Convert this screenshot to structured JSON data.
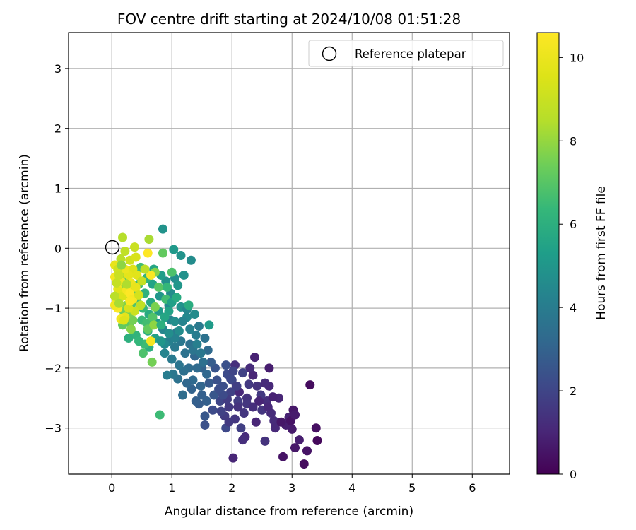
{
  "chart_data": {
    "type": "scatter",
    "title": "FOV centre drift starting at 2024/10/08 01:51:28",
    "xlabel": "Angular distance from reference (arcmin)",
    "ylabel": "Rotation from reference (arcmin)",
    "xlim": [
      -0.72,
      6.62
    ],
    "ylim": [
      -3.77,
      3.6
    ],
    "x_ticks": [
      0,
      1,
      2,
      3,
      4,
      5,
      6
    ],
    "y_ticks": [
      -3,
      -2,
      -1,
      0,
      1,
      2,
      3
    ],
    "x_tick_labels": [
      "0",
      "1",
      "2",
      "3",
      "4",
      "5",
      "6"
    ],
    "y_tick_labels": [
      "−3",
      "−2",
      "−1",
      "0",
      "1",
      "2",
      "3"
    ],
    "grid": true,
    "legend": {
      "position": "top-right",
      "entries": [
        {
          "label": "Reference platepar",
          "marker": "open-circle"
        }
      ]
    },
    "reference_point": {
      "x": 0,
      "y": 0
    },
    "colorbar": {
      "label": "Hours from first FF file",
      "colormap": "viridis",
      "range": [
        0,
        10.6
      ],
      "ticks": [
        0,
        2,
        4,
        6,
        8,
        10
      ],
      "tick_labels": [
        "0",
        "2",
        "4",
        "6",
        "8",
        "10"
      ]
    },
    "points": [
      [
        3.3,
        -2.28,
        0.3
      ],
      [
        3.4,
        -3.0,
        0.4
      ],
      [
        3.42,
        -3.21,
        0.2
      ],
      [
        3.25,
        -3.38,
        0.5
      ],
      [
        3.2,
        -3.6,
        0.3
      ],
      [
        3.05,
        -3.33,
        0.6
      ],
      [
        3.12,
        -3.2,
        0.8
      ],
      [
        3.0,
        -3.02,
        0.7
      ],
      [
        2.95,
        -2.82,
        0.9
      ],
      [
        3.02,
        -2.7,
        0.6
      ],
      [
        2.9,
        -2.95,
        0.8
      ],
      [
        2.85,
        -3.48,
        0.5
      ],
      [
        2.78,
        -2.5,
        1.0
      ],
      [
        2.7,
        -2.88,
        1.2
      ],
      [
        2.72,
        -3.0,
        1.1
      ],
      [
        2.62,
        -2.0,
        0.8
      ],
      [
        2.62,
        -2.3,
        1.1
      ],
      [
        2.58,
        -2.55,
        1.3
      ],
      [
        2.65,
        -2.75,
        1.2
      ],
      [
        2.55,
        -3.22,
        1.4
      ],
      [
        2.5,
        -2.7,
        1.5
      ],
      [
        2.38,
        -1.82,
        0.9
      ],
      [
        2.35,
        -2.12,
        1.0
      ],
      [
        2.28,
        -2.27,
        1.6
      ],
      [
        2.25,
        -2.5,
        1.4
      ],
      [
        2.2,
        -2.75,
        1.5
      ],
      [
        2.22,
        -3.15,
        1.2
      ],
      [
        2.15,
        -3.0,
        1.8
      ],
      [
        2.1,
        -2.55,
        1.7
      ],
      [
        2.05,
        -2.85,
        1.5
      ],
      [
        2.0,
        -2.2,
        2.0
      ],
      [
        1.98,
        -2.4,
        1.9
      ],
      [
        1.95,
        -2.65,
        1.6
      ],
      [
        1.9,
        -3.0,
        2.1
      ],
      [
        1.88,
        -2.8,
        1.7
      ],
      [
        2.05,
        -1.95,
        1.3
      ],
      [
        2.02,
        -3.5,
        1.0
      ],
      [
        1.92,
        -2.1,
        2.2
      ],
      [
        1.85,
        -2.3,
        2.3
      ],
      [
        1.8,
        -2.55,
        2.0
      ],
      [
        1.82,
        -2.72,
        1.9
      ],
      [
        2.12,
        -2.4,
        1.1
      ],
      [
        2.3,
        -2.0,
        1.2
      ],
      [
        2.48,
        -2.45,
        1.6
      ],
      [
        2.4,
        -2.9,
        1.0
      ],
      [
        2.18,
        -3.2,
        1.3
      ],
      [
        1.75,
        -2.2,
        2.4
      ],
      [
        1.7,
        -2.45,
        2.6
      ],
      [
        1.72,
        -2.0,
        2.5
      ],
      [
        1.68,
        -2.7,
        2.2
      ],
      [
        1.65,
        -1.9,
        2.8
      ],
      [
        1.62,
        -2.25,
        2.7
      ],
      [
        1.58,
        -2.55,
        2.9
      ],
      [
        1.55,
        -2.8,
        2.6
      ],
      [
        1.55,
        -2.95,
        2.4
      ],
      [
        1.5,
        -2.0,
        3.0
      ],
      [
        1.48,
        -2.3,
        3.1
      ],
      [
        1.45,
        -2.6,
        2.8
      ],
      [
        1.4,
        -2.55,
        2.9
      ],
      [
        1.38,
        -1.8,
        3.2
      ],
      [
        1.35,
        -2.2,
        3.3
      ],
      [
        1.33,
        -2.35,
        3.0
      ],
      [
        1.3,
        -1.6,
        3.5
      ],
      [
        1.28,
        -2.0,
        3.4
      ],
      [
        1.25,
        -2.25,
        3.2
      ],
      [
        1.22,
        -1.75,
        3.6
      ],
      [
        1.2,
        -2.05,
        3.5
      ],
      [
        1.18,
        -2.45,
        3.4
      ],
      [
        1.15,
        -1.55,
        3.8
      ],
      [
        1.12,
        -1.95,
        3.7
      ],
      [
        1.1,
        -2.18,
        3.6
      ],
      [
        1.08,
        -1.4,
        4.0
      ],
      [
        1.05,
        -1.65,
        3.9
      ],
      [
        1.02,
        -2.1,
        3.8
      ],
      [
        1.0,
        -1.85,
        3.9
      ],
      [
        0.98,
        -1.2,
        4.2
      ],
      [
        0.95,
        -1.55,
        4.1
      ],
      [
        0.92,
        -2.12,
        4.0
      ],
      [
        0.88,
        -1.75,
        4.3
      ],
      [
        0.85,
        -1.35,
        4.4
      ],
      [
        1.45,
        -1.3,
        3.9
      ],
      [
        1.55,
        -1.5,
        3.6
      ],
      [
        1.6,
        -1.7,
        3.3
      ],
      [
        1.62,
        -1.28,
        5.2
      ],
      [
        1.4,
        -1.45,
        4.0
      ],
      [
        1.35,
        -1.7,
        3.7
      ],
      [
        1.3,
        -1.35,
        4.2
      ],
      [
        1.25,
        -1.15,
        4.5
      ],
      [
        1.2,
        -0.45,
        4.8
      ],
      [
        1.15,
        -0.12,
        4.9
      ],
      [
        1.03,
        -0.02,
        5.1
      ],
      [
        1.05,
        -0.5,
        4.7
      ],
      [
        0.98,
        -0.75,
        4.6
      ],
      [
        0.95,
        -0.95,
        4.5
      ],
      [
        0.9,
        -0.55,
        4.8
      ],
      [
        1.32,
        -0.2,
        4.6
      ],
      [
        0.85,
        0.32,
        4.9
      ],
      [
        0.82,
        -0.45,
        5.3
      ],
      [
        0.8,
        -0.8,
        5.0
      ],
      [
        0.78,
        -1.05,
        5.2
      ],
      [
        0.75,
        -1.25,
        5.1
      ],
      [
        0.72,
        -1.5,
        5.4
      ],
      [
        0.7,
        -0.35,
        5.6
      ],
      [
        0.68,
        -0.6,
        5.5
      ],
      [
        0.65,
        -0.9,
        5.7
      ],
      [
        0.62,
        -1.1,
        5.8
      ],
      [
        0.6,
        -1.38,
        5.9
      ],
      [
        0.62,
        -1.65,
        6.0
      ],
      [
        0.58,
        -0.5,
        6.2
      ],
      [
        0.55,
        -0.75,
        6.1
      ],
      [
        0.52,
        -1.0,
        6.3
      ],
      [
        0.5,
        -1.2,
        6.4
      ],
      [
        0.48,
        -0.32,
        6.6
      ],
      [
        0.45,
        -0.6,
        6.5
      ],
      [
        0.42,
        -0.88,
        6.7
      ],
      [
        0.4,
        -1.45,
        6.2
      ],
      [
        0.38,
        -0.4,
        6.8
      ],
      [
        0.35,
        -0.7,
        7.0
      ],
      [
        0.32,
        -0.95,
        6.9
      ],
      [
        0.3,
        -1.25,
        7.1
      ],
      [
        0.28,
        -1.5,
        6.0
      ],
      [
        0.25,
        -0.52,
        7.2
      ],
      [
        0.22,
        -0.78,
        7.3
      ],
      [
        0.2,
        -1.05,
        7.4
      ],
      [
        0.18,
        -1.28,
        7.2
      ],
      [
        0.52,
        -1.75,
        6.8
      ],
      [
        0.55,
        -1.6,
        6.5
      ],
      [
        0.58,
        -1.25,
        6.6
      ],
      [
        0.6,
        -1.35,
        7.2
      ],
      [
        0.67,
        -1.9,
        7.5
      ],
      [
        0.8,
        -2.78,
        6.5
      ],
      [
        0.62,
        0.15,
        8.3
      ],
      [
        0.72,
        -0.4,
        7.8
      ],
      [
        0.85,
        -0.08,
        7.2
      ],
      [
        0.78,
        -0.65,
        7.0
      ],
      [
        0.9,
        -0.85,
        6.6
      ],
      [
        0.68,
        -1.15,
        6.9
      ],
      [
        0.72,
        -0.98,
        7.6
      ],
      [
        0.7,
        -1.28,
        7.9
      ],
      [
        0.45,
        -1.55,
        6.3
      ],
      [
        0.35,
        -1.2,
        7.5
      ],
      [
        0.32,
        -1.35,
        7.8
      ],
      [
        0.28,
        -1.1,
        7.6
      ],
      [
        0.25,
        -0.95,
        7.7
      ],
      [
        0.2,
        -0.62,
        8.0
      ],
      [
        0.18,
        -0.4,
        8.2
      ],
      [
        0.15,
        -0.18,
        8.6
      ],
      [
        0.18,
        0.18,
        8.5
      ],
      [
        0.22,
        -0.05,
        8.8
      ],
      [
        0.3,
        -0.2,
        9.2
      ],
      [
        0.38,
        0.02,
        9.0
      ],
      [
        0.4,
        -0.15,
        9.4
      ],
      [
        0.35,
        -0.35,
        9.6
      ],
      [
        0.28,
        -0.45,
        9.8
      ],
      [
        0.22,
        -0.35,
        10.0
      ],
      [
        0.15,
        -0.55,
        10.2
      ],
      [
        0.1,
        -0.68,
        10.1
      ],
      [
        0.05,
        -0.28,
        9.9
      ],
      [
        0.05,
        -0.48,
        10.3
      ],
      [
        0.08,
        -0.85,
        10.4
      ],
      [
        0.1,
        -1.0,
        10.5
      ],
      [
        0.05,
        -0.95,
        10.2
      ],
      [
        0.12,
        -0.72,
        9.7
      ],
      [
        0.18,
        -0.8,
        9.5
      ],
      [
        0.25,
        -0.7,
        10.3
      ],
      [
        0.3,
        -0.75,
        10.6
      ],
      [
        0.35,
        -0.85,
        10.4
      ],
      [
        0.32,
        -0.58,
        10.1
      ],
      [
        0.4,
        -0.65,
        9.9
      ],
      [
        0.42,
        -0.45,
        9.7
      ],
      [
        0.45,
        -0.78,
        9.3
      ],
      [
        0.48,
        -0.95,
        8.8
      ],
      [
        0.5,
        -0.55,
        8.9
      ],
      [
        0.38,
        -1.05,
        9.1
      ],
      [
        0.28,
        -1.0,
        9.4
      ],
      [
        0.22,
        -1.15,
        9.8
      ],
      [
        0.15,
        -1.18,
        10.2
      ],
      [
        0.2,
        -1.2,
        9.6
      ],
      [
        0.3,
        -0.88,
        10.5
      ],
      [
        0.25,
        -0.6,
        8.4
      ],
      [
        0.65,
        -0.45,
        10.5
      ],
      [
        0.6,
        -0.08,
        10.6
      ],
      [
        0.65,
        -1.55,
        10.3
      ],
      [
        0.55,
        -0.35,
        8.7
      ],
      [
        0.1,
        -0.35,
        9.2
      ],
      [
        0.08,
        -0.58,
        8.9
      ],
      [
        0.05,
        -0.8,
        8.6
      ],
      [
        0.12,
        -0.45,
        9.0
      ],
      [
        0.12,
        -0.92,
        8.3
      ],
      [
        0.16,
        -0.28,
        7.9
      ],
      [
        1.0,
        -0.9,
        5.4
      ],
      [
        1.1,
        -0.62,
        5.0
      ],
      [
        1.15,
        -0.98,
        4.9
      ],
      [
        1.08,
        -0.82,
        5.8
      ],
      [
        0.95,
        -1.05,
        5.5
      ],
      [
        1.05,
        -1.22,
        4.7
      ],
      [
        0.88,
        -1.15,
        5.6
      ],
      [
        0.82,
        -1.28,
        6.0
      ],
      [
        1.0,
        -0.4,
        6.8
      ],
      [
        0.92,
        -0.65,
        6.3
      ],
      [
        1.25,
        -1.02,
        4.4
      ],
      [
        1.18,
        -1.22,
        4.3
      ],
      [
        1.28,
        -0.95,
        5.9
      ],
      [
        1.38,
        -1.1,
        4.6
      ],
      [
        1.42,
        -1.6,
        4.1
      ],
      [
        1.48,
        -1.75,
        3.8
      ],
      [
        1.52,
        -1.9,
        3.5
      ],
      [
        1.58,
        -2.1,
        3.2
      ],
      [
        1.5,
        -2.45,
        2.9
      ],
      [
        1.42,
        -2.0,
        3.3
      ],
      [
        1.12,
        -1.38,
        4.6
      ],
      [
        1.05,
        -1.5,
        4.2
      ],
      [
        0.95,
        -1.42,
        4.7
      ],
      [
        0.88,
        -1.6,
        4.5
      ],
      [
        0.82,
        -1.55,
        5.0
      ],
      [
        1.92,
        -2.52,
        1.7
      ],
      [
        1.98,
        -2.18,
        2.1
      ],
      [
        2.08,
        -2.3,
        1.8
      ],
      [
        2.1,
        -2.65,
        1.4
      ],
      [
        1.85,
        -2.45,
        2.2
      ],
      [
        1.78,
        -2.35,
        2.3
      ],
      [
        1.95,
        -2.9,
        1.6
      ],
      [
        2.25,
        -2.6,
        1.5
      ],
      [
        2.35,
        -2.65,
        1.3
      ],
      [
        2.42,
        -2.3,
        1.4
      ],
      [
        2.6,
        -2.65,
        1.1
      ],
      [
        2.68,
        -2.48,
        0.9
      ],
      [
        2.55,
        -2.25,
        1.2
      ],
      [
        2.45,
        -2.55,
        1.0
      ],
      [
        2.82,
        -2.9,
        0.6
      ],
      [
        2.98,
        -2.88,
        0.5
      ],
      [
        3.05,
        -2.78,
        0.7
      ],
      [
        2.18,
        -2.08,
        1.9
      ],
      [
        2.02,
        -2.05,
        2.0
      ],
      [
        1.9,
        -1.95,
        2.4
      ]
    ]
  }
}
